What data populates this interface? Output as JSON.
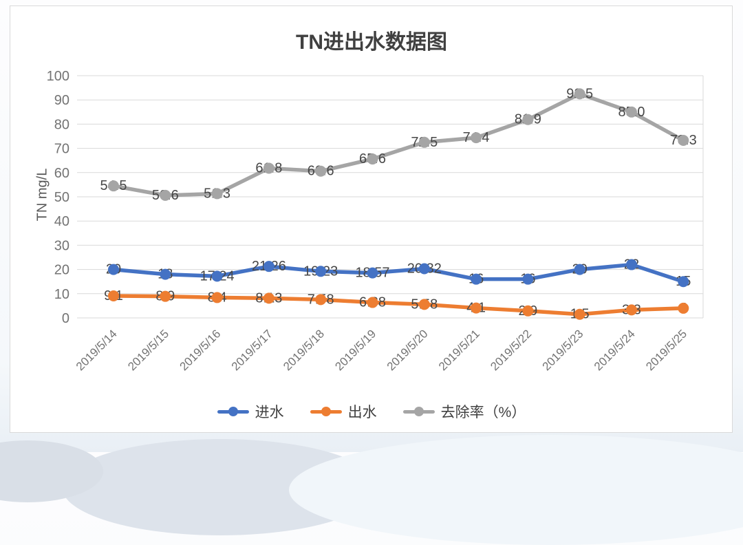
{
  "chart_data": {
    "type": "line",
    "title": "TN进出水数据图",
    "ylabel": "TN mg/L",
    "ylim": [
      0,
      100
    ],
    "ytick_step": 10,
    "grid": true,
    "legend_position": "bottom",
    "categories": [
      "2019/5/14",
      "2019/5/15",
      "2019/5/16",
      "2019/5/17",
      "2019/5/18",
      "2019/5/19",
      "2019/5/20",
      "2019/5/21",
      "2019/5/22",
      "2019/5/23",
      "2019/5/24",
      "2019/5/25"
    ],
    "series": [
      {
        "name": "进水",
        "color": "#4472C4",
        "values": [
          20,
          18,
          17.24,
          21.26,
          19.23,
          18.57,
          20.32,
          16,
          16,
          20,
          22,
          15
        ],
        "labels": [
          "20",
          "18",
          "17.24",
          "21.26",
          "19.23",
          "18.57",
          "20.32",
          "16",
          "16",
          "20",
          "22",
          "15"
        ]
      },
      {
        "name": "出水",
        "color": "#ED7D31",
        "values": [
          9.1,
          8.9,
          8.4,
          8.13,
          7.58,
          6.38,
          5.58,
          4.1,
          2.9,
          1.5,
          3.3,
          4
        ],
        "labels": [
          "9.1",
          "8.9",
          "8.4",
          "8.13",
          "7.58",
          "6.38",
          "5.58",
          "4.1",
          "2.9",
          "1.5",
          "3.3",
          "4"
        ]
      },
      {
        "name": "去除率（%）",
        "color": "#A5A5A5",
        "values": [
          54.5,
          50.6,
          51.3,
          61.8,
          60.6,
          65.6,
          72.5,
          74.4,
          81.9,
          92.5,
          85,
          73.3
        ],
        "labels": [
          "54.5",
          "50.6",
          "51.3",
          "61.8",
          "60.6",
          "65.6",
          "72.5",
          "74.4",
          "81.9",
          "92.5",
          "85.0",
          "73.3"
        ]
      }
    ]
  },
  "colors": {
    "grid": "#d9d9d9",
    "tick_text": "#737373",
    "data_label": "#474747",
    "title_text": "#404040",
    "axis_title_text": "#595959",
    "card_border": "#d9d9d9"
  }
}
